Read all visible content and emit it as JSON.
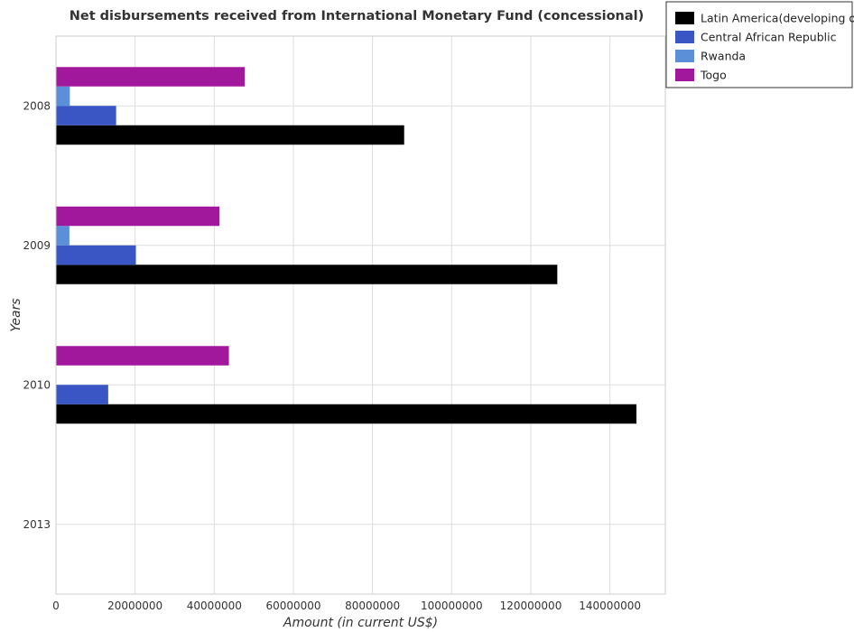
{
  "chart_data": {
    "type": "bar",
    "orientation": "horizontal",
    "title": "Net disbursements received from International Monetary Fund (concessional)",
    "xlabel": "Amount (in current US$)",
    "ylabel": "Years",
    "categories": [
      "2008",
      "2009",
      "2010",
      "2013"
    ],
    "series": [
      {
        "name": "Latin America(developing only)",
        "color": "#000000",
        "values": [
          88000000,
          126700000,
          146700000,
          0
        ]
      },
      {
        "name": "Central African Republic",
        "color": "#3a56c4",
        "values": [
          15200000,
          20200000,
          13200000,
          0
        ]
      },
      {
        "name": "Rwanda",
        "color": "#5b8fd8",
        "values": [
          3500000,
          3400000,
          0,
          0
        ]
      },
      {
        "name": "Togo",
        "color": "#a2189c",
        "values": [
          47700000,
          41300000,
          43700000,
          0
        ]
      }
    ],
    "xlim": [
      0,
      154000000
    ],
    "xticks": [
      0,
      20000000,
      40000000,
      60000000,
      80000000,
      100000000,
      120000000,
      140000000
    ],
    "xtick_labels": [
      "0",
      "20000000",
      "40000000",
      "60000000",
      "80000000",
      "100000000",
      "120000000",
      "140000000"
    ],
    "grid": true,
    "legend_position": "top-right"
  }
}
